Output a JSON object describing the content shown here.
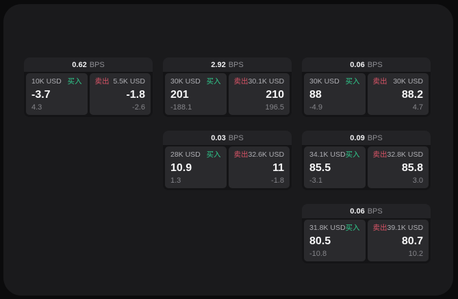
{
  "labels": {
    "buy": "买入",
    "sell": "卖出",
    "bps": "BPS"
  },
  "colors": {
    "buy_green": "#2fc98c",
    "sell_red": "#d95467",
    "panel_bg": "#1a1a1c",
    "card_header_bg": "#232326",
    "subpanel_bg": "#2a2a2d"
  },
  "cards": [
    {
      "bps": "0.62",
      "grid": {
        "col": 1,
        "row": 1
      },
      "buy": {
        "notional": "10K USD",
        "price": "-3.7",
        "sub": "4.3"
      },
      "sell": {
        "notional": "5.5K USD",
        "price": "-1.8",
        "sub": "-2.6"
      }
    },
    {
      "bps": "2.92",
      "grid": {
        "col": 2,
        "row": 1
      },
      "buy": {
        "notional": "30K USD",
        "price": "201",
        "sub": "-188.1"
      },
      "sell": {
        "notional": "30.1K USD",
        "price": "210",
        "sub": "196.5"
      }
    },
    {
      "bps": "0.06",
      "grid": {
        "col": 3,
        "row": 1
      },
      "buy": {
        "notional": "30K USD",
        "price": "88",
        "sub": "-4.9"
      },
      "sell": {
        "notional": "30K USD",
        "price": "88.2",
        "sub": "4.7"
      }
    },
    {
      "bps": "0.03",
      "grid": {
        "col": 2,
        "row": 2
      },
      "buy": {
        "notional": "28K USD",
        "price": "10.9",
        "sub": "1.3"
      },
      "sell": {
        "notional": "32.6K USD",
        "price": "11",
        "sub": "-1.8"
      }
    },
    {
      "bps": "0.09",
      "grid": {
        "col": 3,
        "row": 2
      },
      "buy": {
        "notional": "34.1K USD",
        "price": "85.5",
        "sub": "-3.1"
      },
      "sell": {
        "notional": "32.8K USD",
        "price": "85.8",
        "sub": "3.0"
      }
    },
    {
      "bps": "0.06",
      "grid": {
        "col": 3,
        "row": 3
      },
      "buy": {
        "notional": "31.8K USD",
        "price": "80.5",
        "sub": "-10.8"
      },
      "sell": {
        "notional": "39.1K USD",
        "price": "80.7",
        "sub": "10.2"
      }
    }
  ]
}
